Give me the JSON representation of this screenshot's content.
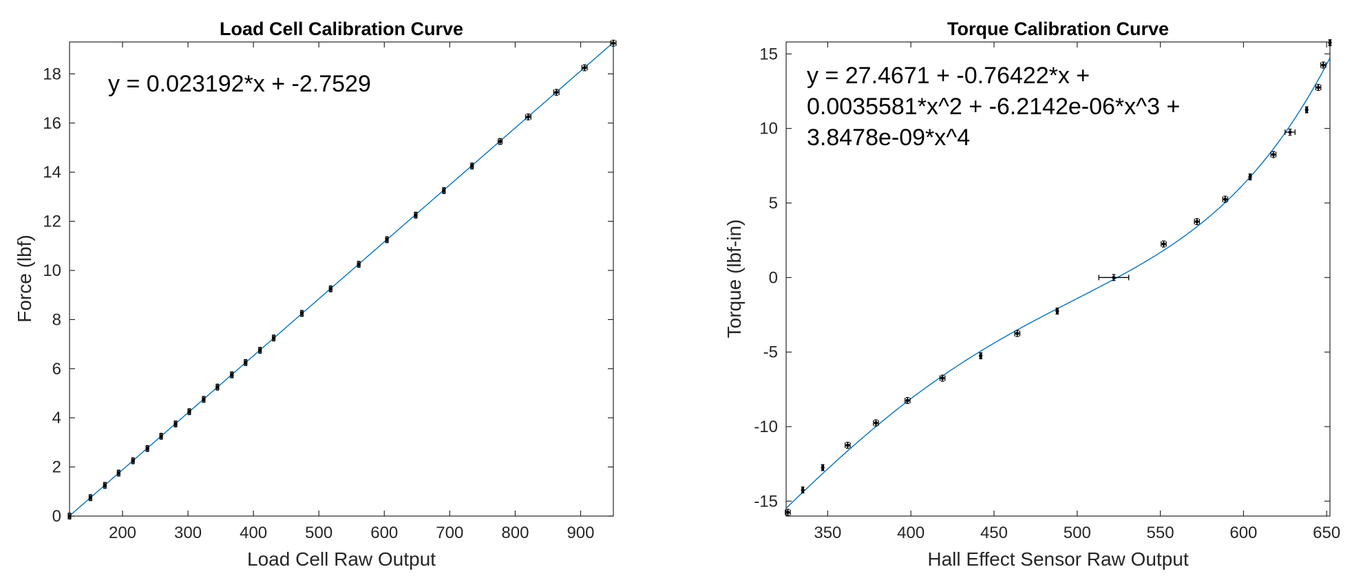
{
  "chart_data": [
    {
      "type": "scatter",
      "title": "Load Cell Calibration Curve",
      "xlabel": "Load Cell Raw Output",
      "ylabel": "Force (lbf)",
      "xlim": [
        119,
        950
      ],
      "ylim": [
        0,
        19.3
      ],
      "xticks": [
        200,
        300,
        400,
        500,
        600,
        700,
        800,
        900
      ],
      "yticks": [
        0,
        2,
        4,
        6,
        8,
        10,
        12,
        14,
        16,
        18
      ],
      "equation": "y = 0.023192*x + -2.7529",
      "fit": {
        "kind": "polynomial",
        "coefficients": [
          -2.7529,
          0.023192
        ]
      },
      "grid": false,
      "points": [
        {
          "x": 119,
          "y": 0,
          "xerr": 2,
          "yerr": 0.12
        },
        {
          "x": 151,
          "y": 0.75,
          "xerr": 2,
          "yerr": 0.12
        },
        {
          "x": 173,
          "y": 1.25,
          "xerr": 2,
          "yerr": 0.12
        },
        {
          "x": 194,
          "y": 1.75,
          "xerr": 2,
          "yerr": 0.12
        },
        {
          "x": 216,
          "y": 2.25,
          "xerr": 2,
          "yerr": 0.12
        },
        {
          "x": 238,
          "y": 2.75,
          "xerr": 2,
          "yerr": 0.12
        },
        {
          "x": 259,
          "y": 3.25,
          "xerr": 2,
          "yerr": 0.12
        },
        {
          "x": 281,
          "y": 3.75,
          "xerr": 2,
          "yerr": 0.12
        },
        {
          "x": 302,
          "y": 4.25,
          "xerr": 2,
          "yerr": 0.12
        },
        {
          "x": 324,
          "y": 4.75,
          "xerr": 2,
          "yerr": 0.12
        },
        {
          "x": 345,
          "y": 5.25,
          "xerr": 2,
          "yerr": 0.12
        },
        {
          "x": 367,
          "y": 5.75,
          "xerr": 2,
          "yerr": 0.12
        },
        {
          "x": 388,
          "y": 6.25,
          "xerr": 2,
          "yerr": 0.12
        },
        {
          "x": 410,
          "y": 6.75,
          "xerr": 2,
          "yerr": 0.12
        },
        {
          "x": 431,
          "y": 7.25,
          "xerr": 2,
          "yerr": 0.12
        },
        {
          "x": 474,
          "y": 8.25,
          "xerr": 2,
          "yerr": 0.12
        },
        {
          "x": 518,
          "y": 9.25,
          "xerr": 2,
          "yerr": 0.12
        },
        {
          "x": 561,
          "y": 10.25,
          "xerr": 2,
          "yerr": 0.12
        },
        {
          "x": 604,
          "y": 11.25,
          "xerr": 2,
          "yerr": 0.12
        },
        {
          "x": 648,
          "y": 12.25,
          "xerr": 2,
          "yerr": 0.12
        },
        {
          "x": 691,
          "y": 13.25,
          "xerr": 2,
          "yerr": 0.12
        },
        {
          "x": 734,
          "y": 14.25,
          "xerr": 2,
          "yerr": 0.12
        },
        {
          "x": 777,
          "y": 15.25,
          "xerr": 3,
          "yerr": 0.12
        },
        {
          "x": 820,
          "y": 16.25,
          "xerr": 4,
          "yerr": 0.12
        },
        {
          "x": 863,
          "y": 17.25,
          "xerr": 4,
          "yerr": 0.12
        },
        {
          "x": 906,
          "y": 18.25,
          "xerr": 4,
          "yerr": 0.12
        },
        {
          "x": 950,
          "y": 19.25,
          "xerr": 4,
          "yerr": 0.12
        }
      ]
    },
    {
      "type": "scatter",
      "title": "Torque Calibration Curve",
      "xlabel": "Hall Effect Sensor Raw Output",
      "ylabel": "Torque (lbf-in)",
      "xlim": [
        325,
        652
      ],
      "ylim": [
        -16,
        15.8
      ],
      "xticks": [
        350,
        400,
        450,
        500,
        550,
        600,
        650
      ],
      "yticks": [
        -15,
        -10,
        -5,
        0,
        5,
        10,
        15
      ],
      "equation": "y = 27.4671 + -0.76422*x + 0.0035581*x^2 + -6.2142e-06*x^3 + 3.8478e-09*x^4",
      "equation_lines": [
        "y = 27.4671 + -0.76422*x +",
        "0.0035581*x^2 + -6.2142e-06*x^3 +",
        "3.8478e-09*x^4"
      ],
      "fit": {
        "kind": "polynomial",
        "coefficients": [
          27.4671,
          -0.76422,
          0.0035581,
          -6.2142e-06,
          3.8478e-09
        ]
      },
      "grid": false,
      "points": [
        {
          "x": 326,
          "y": -15.75,
          "xerr": 1.5,
          "yerr": 0.2
        },
        {
          "x": 335,
          "y": -14.25,
          "xerr": 0.5,
          "yerr": 0.2
        },
        {
          "x": 347,
          "y": -12.75,
          "xerr": 0.5,
          "yerr": 0.2
        },
        {
          "x": 362,
          "y": -11.25,
          "xerr": 1.5,
          "yerr": 0.2
        },
        {
          "x": 379,
          "y": -9.75,
          "xerr": 1.5,
          "yerr": 0.2
        },
        {
          "x": 398,
          "y": -8.25,
          "xerr": 1.5,
          "yerr": 0.2
        },
        {
          "x": 419,
          "y": -6.75,
          "xerr": 1.5,
          "yerr": 0.2
        },
        {
          "x": 442,
          "y": -5.25,
          "xerr": 0.5,
          "yerr": 0.2
        },
        {
          "x": 464,
          "y": -3.75,
          "xerr": 1.5,
          "yerr": 0.2
        },
        {
          "x": 488,
          "y": -2.25,
          "xerr": 0.5,
          "yerr": 0.2
        },
        {
          "x": 522,
          "y": 0,
          "xerr": 9,
          "yerr": 0.2
        },
        {
          "x": 552,
          "y": 2.25,
          "xerr": 1.5,
          "yerr": 0.2
        },
        {
          "x": 572,
          "y": 3.75,
          "xerr": 1.5,
          "yerr": 0.2
        },
        {
          "x": 589,
          "y": 5.25,
          "xerr": 1.5,
          "yerr": 0.2
        },
        {
          "x": 604,
          "y": 6.75,
          "xerr": 0.5,
          "yerr": 0.2
        },
        {
          "x": 618,
          "y": 8.25,
          "xerr": 1.5,
          "yerr": 0.2
        },
        {
          "x": 628,
          "y": 9.75,
          "xerr": 3,
          "yerr": 0.2
        },
        {
          "x": 638,
          "y": 11.25,
          "xerr": 0.5,
          "yerr": 0.2
        },
        {
          "x": 645,
          "y": 12.75,
          "xerr": 1.5,
          "yerr": 0.2
        },
        {
          "x": 648,
          "y": 14.25,
          "xerr": 1.5,
          "yerr": 0.2
        },
        {
          "x": 652,
          "y": 15.75,
          "xerr": 0.5,
          "yerr": 0.2
        }
      ]
    }
  ]
}
